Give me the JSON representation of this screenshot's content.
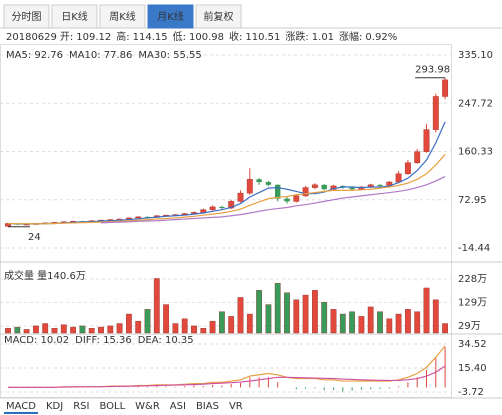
{
  "tabs": [
    "分时图",
    "日K线",
    "周K线",
    "月K线",
    "前复权"
  ],
  "active_tab": 3,
  "info": {
    "date": "20180629",
    "items": [
      {
        "label": "开:",
        "value": "109.12",
        "color": "#2a9d3a"
      },
      {
        "label": "高:",
        "value": "114.15",
        "color": "#e0302a"
      },
      {
        "label": "低:",
        "value": "100.98",
        "color": "#2a9d3a"
      },
      {
        "label": "收:",
        "value": "110.51",
        "color": "#e0302a"
      },
      {
        "label": "涨跌:",
        "value": "1.01",
        "color": "#e0302a"
      },
      {
        "label": "涨幅:",
        "value": "0.92%",
        "color": "#e0302a"
      }
    ]
  },
  "indicator_tabs": [
    "MACD",
    "KDJ",
    "RSI",
    "BOLL",
    "W&R",
    "ASI",
    "BIAS",
    "VR"
  ],
  "active_indicator": 0,
  "chart_data": [
    {
      "type": "candlestick",
      "up_color": "#e2483c",
      "down_color": "#3a9a5a",
      "opens": [
        25,
        30,
        28,
        29,
        30,
        31,
        32,
        33,
        34,
        33,
        35,
        36,
        37,
        38,
        40,
        42,
        41,
        44,
        45,
        46,
        48,
        50,
        55,
        60,
        58,
        70,
        85,
        110,
        105,
        100,
        75,
        70,
        80,
        95,
        100,
        92,
        98,
        95,
        92,
        96,
        100,
        98,
        105,
        120,
        140,
        160,
        200,
        260
      ],
      "highs": [
        31,
        31,
        30,
        31,
        32,
        33,
        34,
        35,
        35,
        36,
        37,
        38,
        39,
        41,
        43,
        43,
        45,
        46,
        47,
        49,
        52,
        57,
        63,
        62,
        73,
        90,
        130,
        112,
        107,
        101,
        78,
        83,
        98,
        103,
        101,
        100,
        99,
        97,
        98,
        102,
        101,
        107,
        125,
        145,
        165,
        210,
        265,
        293.98
      ],
      "lows": [
        24,
        26.98,
        27,
        28,
        29,
        30,
        31,
        32,
        32,
        32,
        34,
        35,
        36,
        37,
        39,
        40,
        40,
        43,
        44,
        45,
        47,
        49,
        53,
        56,
        56,
        68,
        82,
        100,
        97,
        70,
        66,
        68,
        78,
        92,
        90,
        90,
        93,
        90,
        90,
        94,
        96,
        96,
        103,
        118,
        138,
        158,
        195,
        255
      ],
      "closes": [
        30,
        28,
        29,
        30,
        31,
        32,
        33,
        34,
        33,
        35,
        36,
        37,
        38,
        40,
        42,
        41,
        44,
        45,
        46,
        48,
        50,
        55,
        60,
        58,
        70,
        85,
        110,
        105,
        100,
        75,
        70,
        80,
        95,
        100,
        92,
        98,
        95,
        92,
        96,
        100,
        98,
        105,
        120,
        140,
        160,
        200,
        260,
        290
      ],
      "ylim": [
        -32.5,
        353.2
      ],
      "yticks": [
        {
          "value": 335.1,
          "label": "335.10"
        },
        247.72,
        160.33,
        72.95,
        -14.44
      ],
      "series": [
        {
          "name": "MA5",
          "legend": "MA5: 92.76",
          "color": "#3a6fc4",
          "values": [
            30,
            29,
            29,
            29.5,
            30,
            30,
            31,
            32,
            33,
            33.5,
            34.5,
            35,
            36,
            37,
            38.5,
            40,
            41.5,
            43,
            44,
            45,
            47,
            49,
            52,
            55,
            59,
            66,
            78,
            86,
            94,
            95,
            92,
            88,
            84,
            84,
            87,
            93,
            96,
            96,
            95,
            96,
            96,
            98,
            104,
            112,
            126,
            145,
            176,
            214
          ]
        },
        {
          "name": "MA10",
          "legend": "MA10: 77.86",
          "color": "#e8a040",
          "values": [
            30,
            29.5,
            29.5,
            29.5,
            29.5,
            30,
            30.5,
            31,
            31.5,
            32,
            32.5,
            33.5,
            34,
            35,
            36,
            37,
            38,
            39,
            40,
            41.5,
            43,
            45,
            47,
            49,
            52,
            56,
            63,
            69,
            75,
            77,
            79,
            82,
            84,
            86,
            88,
            90,
            90,
            90,
            91,
            92,
            94,
            96,
            99,
            103,
            110,
            120,
            136,
            155
          ]
        },
        {
          "name": "MA30",
          "legend": "MA30: 55.55",
          "color": "#b07ac8",
          "values": [
            null,
            null,
            null,
            null,
            null,
            null,
            null,
            null,
            null,
            null,
            31,
            32,
            32.5,
            33,
            34,
            34.5,
            35,
            36,
            37,
            38,
            39,
            40,
            41,
            42,
            44,
            46,
            49,
            52,
            55,
            57,
            59,
            62,
            64,
            67,
            70,
            73,
            76,
            78,
            80,
            82,
            84,
            86,
            88,
            91,
            95,
            100,
            107,
            115
          ]
        }
      ]
    },
    {
      "type": "bar",
      "title": "成交量 量140.6万",
      "values": [
        20,
        25,
        15,
        30,
        40,
        20,
        35,
        25,
        30,
        20,
        25,
        30,
        40,
        80,
        50,
        100,
        230,
        120,
        40,
        60,
        30,
        20,
        50,
        90,
        70,
        150,
        80,
        180,
        120,
        210,
        170,
        140,
        160,
        180,
        130,
        100,
        80,
        90,
        70,
        110,
        90,
        60,
        80,
        100,
        90,
        190,
        140,
        40
      ],
      "ylim": [
        0,
        291
      ],
      "yticks": [
        {
          "value": 228,
          "label": "228万"
        },
        {
          "value": 129,
          "label": "129万"
        },
        {
          "value": 29,
          "label": "29万"
        }
      ]
    },
    {
      "type": "macd",
      "ylim": [
        -8.5,
        40.9
      ],
      "yticks": [
        34.52,
        {
          "value": 15.4,
          "label": "15.40"
        },
        -3.72
      ],
      "series": [
        {
          "name": "MACD",
          "legend": "MACD: 10.02",
          "color": "#333333",
          "values": [
            0,
            0,
            0,
            0,
            0,
            0,
            0.6,
            0.4,
            0.2,
            0.2,
            0,
            0.8,
            0.4,
            0.2,
            1,
            0.6,
            1.2,
            0.8,
            0.4,
            1,
            1.6,
            1,
            2,
            1.4,
            2.6,
            3.6,
            8,
            8,
            8,
            4,
            0,
            -1.6,
            -1.2,
            -0.8,
            -2.4,
            -2,
            -3.2,
            -2.6,
            -2,
            -1.6,
            -1.2,
            -1,
            0.8,
            4,
            8,
            14,
            24,
            32
          ]
        },
        {
          "name": "DIFF",
          "legend": "DIFF: 15.36",
          "color": "#e8a040",
          "values": [
            0,
            0,
            0,
            0,
            0,
            0,
            0.5,
            0.5,
            0.5,
            0.5,
            0.5,
            1,
            1,
            1,
            1.5,
            1.5,
            2,
            2,
            2,
            2.5,
            3,
            3,
            4,
            4,
            5,
            6,
            9,
            10,
            11,
            10,
            8,
            7,
            7,
            7,
            6,
            6,
            5,
            5,
            5,
            5,
            5,
            5,
            6,
            8,
            11,
            16,
            24,
            33
          ]
        },
        {
          "name": "DEA",
          "legend": "DEA: 10.35",
          "color": "#d04fa0",
          "values": [
            0,
            0,
            0,
            0,
            0,
            0,
            0.2,
            0.3,
            0.4,
            0.4,
            0.5,
            0.6,
            0.8,
            0.9,
            1,
            1.2,
            1.4,
            1.6,
            1.8,
            2,
            2.2,
            2.5,
            3,
            3.3,
            3.7,
            4.2,
            5,
            6,
            7,
            8,
            8,
            7.8,
            7.6,
            7.4,
            7.2,
            7,
            6.6,
            6.3,
            6,
            5.8,
            5.6,
            5.5,
            5.6,
            6,
            7,
            9,
            12,
            17
          ]
        }
      ]
    }
  ]
}
